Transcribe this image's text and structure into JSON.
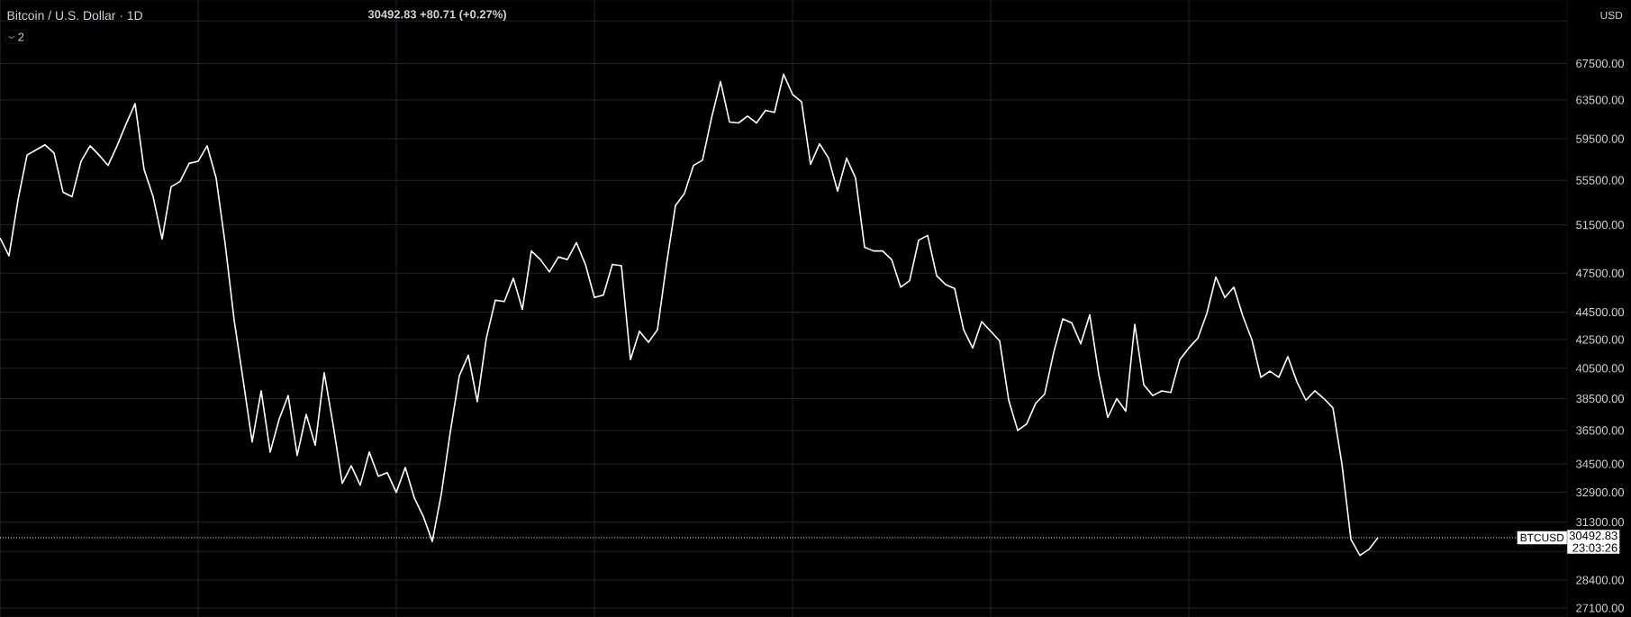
{
  "chart_data": {
    "type": "line",
    "title": "Bitcoin / U.S. Dollar · 1D",
    "annotations": [
      "30492.83 +80.71 (+0.27%)",
      "2",
      "USD",
      "30492.83",
      "23:03:26"
    ],
    "categories": [
      null,
      null,
      null,
      null,
      null,
      null,
      null,
      null,
      null,
      null,
      null,
      null,
      null,
      null,
      null,
      null,
      null,
      null,
      null,
      null,
      null,
      null,
      null,
      null,
      null,
      null,
      null,
      null,
      null,
      null,
      null,
      null,
      null,
      null,
      null,
      null,
      null,
      null,
      null,
      null,
      null,
      null,
      null,
      null,
      null,
      null,
      null,
      null,
      null,
      null,
      null,
      null,
      null,
      null,
      null,
      null,
      null,
      null,
      null,
      null,
      null,
      null,
      null,
      null,
      null,
      null,
      null,
      null,
      null,
      null,
      null,
      null,
      null,
      null,
      null,
      null,
      null,
      null,
      null,
      null,
      null,
      null,
      null,
      null,
      null,
      null,
      null,
      null,
      null,
      null,
      null,
      null,
      null,
      null,
      null,
      null,
      null,
      null,
      null,
      null,
      null,
      null,
      null,
      null,
      null,
      null,
      null,
      null,
      null,
      null,
      null,
      null,
      null,
      null,
      null,
      null,
      null,
      null,
      null,
      null,
      null,
      null,
      null,
      null,
      null,
      null,
      null,
      null,
      null,
      null,
      null,
      null,
      null,
      null,
      null,
      null,
      null,
      null,
      null,
      null,
      null,
      null,
      null,
      null,
      null,
      null,
      null,
      null,
      null,
      null,
      null,
      null,
      null,
      null
    ],
    "series": [
      {
        "color": "#ffffff",
        "values": [
          50400,
          48900,
          53700,
          57900,
          58400,
          58900,
          58100,
          54400,
          54000,
          57300,
          58800,
          57900,
          56900,
          58800,
          61000,
          63100,
          56500,
          54000,
          50300,
          54900,
          55400,
          57100,
          57300,
          58800,
          55700,
          49900,
          43900,
          39700,
          35800,
          39000,
          35200,
          37200,
          38700,
          35000,
          37500,
          35600,
          40200,
          36800,
          33400,
          34400,
          33300,
          35200,
          33800,
          34000,
          32900,
          34300,
          32600,
          31600,
          30300,
          32800,
          36400,
          40000,
          41400,
          38300,
          42600,
          45400,
          45300,
          47100,
          44700,
          49300,
          48600,
          47600,
          48800,
          48600,
          50000,
          48200,
          45600,
          45800,
          48200,
          48100,
          41100,
          43100,
          42300,
          43200,
          48200,
          53200,
          54300,
          56900,
          57400,
          61600,
          65500,
          61200,
          61100,
          61800,
          61100,
          62400,
          62200,
          66300,
          64100,
          63300,
          57000,
          59000,
          57600,
          54500,
          57600,
          55700,
          49600,
          49300,
          49300,
          48600,
          46400,
          46900,
          50200,
          50600,
          47300,
          46600,
          46300,
          43200,
          41900,
          43800,
          43100,
          42400,
          38400,
          36500,
          36900,
          38200,
          38800,
          41600,
          44000,
          43700,
          42200,
          44300,
          40100,
          37300,
          38500,
          37700,
          43600,
          39400,
          38700,
          39000,
          38900,
          41100,
          41900,
          42600,
          44400,
          47200,
          45600,
          46400,
          44200,
          42500,
          39900,
          40300,
          39900,
          41300,
          39600,
          38400,
          39000,
          38500,
          37900,
          34500,
          30400,
          29600,
          29900,
          30492.83
        ]
      }
    ],
    "log": "y",
    "ylim": [
      26700,
      75100
    ],
    "yticks": [
      {
        "value": 72500,
        "label": null
      },
      {
        "value": 67500,
        "label": "67500.00"
      },
      {
        "value": 63500,
        "label": "63500.00"
      },
      {
        "value": 59500,
        "label": "59500.00"
      },
      {
        "value": 55500,
        "label": "55500.00"
      },
      {
        "value": 51500,
        "label": "51500.00"
      },
      {
        "value": 47500,
        "label": "47500.00"
      },
      {
        "value": 44500,
        "label": "44500.00"
      },
      {
        "value": 42500,
        "label": "42500.00"
      },
      {
        "value": 40500,
        "label": "40500.00"
      },
      {
        "value": 38500,
        "label": "38500.00"
      },
      {
        "value": 36500,
        "label": "36500.00"
      },
      {
        "value": 34500,
        "label": "34500.00"
      },
      {
        "value": 32900,
        "label": "32900.00"
      },
      {
        "value": 31300,
        "label": "31300.00"
      },
      {
        "value": 29800,
        "label": null
      },
      {
        "value": 28400,
        "label": "28400.00"
      },
      {
        "value": 27100,
        "label": "27100.00"
      }
    ],
    "ref_lines": [
      {
        "axis": "y",
        "value": 30492.83,
        "label": "BTCUSD",
        "color": "#ffffff",
        "line_style": "dotted"
      }
    ],
    "grid": true,
    "tick_labels": "y",
    "marker": "none",
    "line_style": "solid"
  }
}
